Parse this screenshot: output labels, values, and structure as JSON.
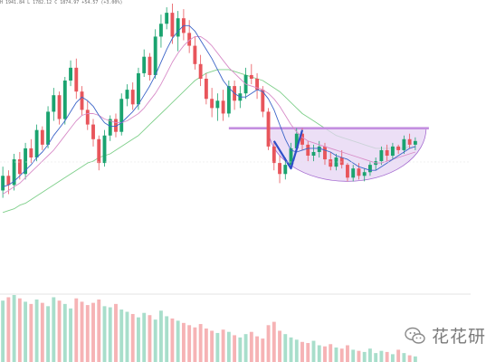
{
  "header": {
    "ohlc_text": "H 1941.84  L 1782.12  C 1874.97  +54.57 (+3.00%)",
    "change_color": "#1aa36f"
  },
  "watermark": {
    "text": "花花研",
    "icon": "wechat-chat-bubbles-icon"
  },
  "colors": {
    "up": "#1aa36f",
    "down": "#e8555b",
    "ma_fast": "#3b64c8",
    "ma_mid": "#d88cc8",
    "ma_slow": "#7ecf8a",
    "pattern_fill": "#e6d4f3",
    "pattern_stroke": "#a56cd0",
    "neckline": "#c48fe0",
    "zigzag": "#2e4fc9",
    "volume_up": "#a8decb",
    "volume_down": "#f6b3b5"
  },
  "chart_data": {
    "type": "candlestick",
    "title": "",
    "xlabel": "",
    "ylabel": "",
    "grid": false,
    "annotations": [
      "cup-and-handle pattern",
      "neckline",
      "V-shaped zig-zag"
    ],
    "price_scale": [
      0,
      100
    ],
    "candles": [
      [
        22,
        35,
        18,
        30
      ],
      [
        30,
        33,
        20,
        25
      ],
      [
        25,
        42,
        22,
        39
      ],
      [
        39,
        43,
        28,
        31
      ],
      [
        31,
        48,
        28,
        45
      ],
      [
        45,
        50,
        37,
        40
      ],
      [
        40,
        58,
        38,
        55
      ],
      [
        55,
        57,
        44,
        47
      ],
      [
        47,
        68,
        45,
        65
      ],
      [
        65,
        78,
        60,
        74
      ],
      [
        74,
        76,
        58,
        61
      ],
      [
        61,
        84,
        58,
        82
      ],
      [
        82,
        93,
        79,
        89
      ],
      [
        89,
        94,
        72,
        76
      ],
      [
        76,
        79,
        63,
        66
      ],
      [
        66,
        71,
        55,
        58
      ],
      [
        58,
        61,
        46,
        50
      ],
      [
        50,
        52,
        33,
        37
      ],
      [
        37,
        55,
        35,
        52
      ],
      [
        52,
        63,
        49,
        61
      ],
      [
        61,
        64,
        51,
        54
      ],
      [
        54,
        75,
        52,
        72
      ],
      [
        72,
        80,
        68,
        77
      ],
      [
        77,
        81,
        66,
        69
      ],
      [
        69,
        89,
        66,
        86
      ],
      [
        86,
        99,
        84,
        95
      ],
      [
        95,
        97,
        82,
        85
      ],
      [
        85,
        110,
        83,
        106
      ],
      [
        106,
        118,
        100,
        113
      ],
      [
        113,
        122,
        110,
        119
      ],
      [
        119,
        124,
        102,
        106
      ],
      [
        106,
        120,
        98,
        116
      ],
      [
        116,
        121,
        104,
        108
      ],
      [
        108,
        115,
        97,
        101
      ],
      [
        101,
        106,
        88,
        91
      ],
      [
        91,
        96,
        79,
        83
      ],
      [
        83,
        86,
        69,
        72
      ],
      [
        72,
        78,
        62,
        67
      ],
      [
        67,
        75,
        60,
        71
      ],
      [
        71,
        77,
        60,
        64
      ],
      [
        64,
        82,
        62,
        79
      ],
      [
        79,
        82,
        66,
        71
      ],
      [
        71,
        79,
        67,
        75
      ],
      [
        75,
        89,
        72,
        85
      ],
      [
        85,
        91,
        80,
        83
      ],
      [
        83,
        86,
        72,
        77
      ],
      [
        77,
        79,
        62,
        65
      ],
      [
        65,
        67,
        44,
        46
      ],
      [
        46,
        49,
        33,
        37
      ],
      [
        37,
        41,
        26,
        31
      ],
      [
        31,
        40,
        28,
        36
      ],
      [
        36,
        48,
        34,
        45
      ],
      [
        45,
        56,
        43,
        53
      ],
      [
        53,
        56,
        44,
        47
      ],
      [
        47,
        49,
        38,
        41
      ],
      [
        41,
        47,
        38,
        43
      ],
      [
        43,
        49,
        40,
        46
      ],
      [
        46,
        48,
        36,
        39
      ],
      [
        39,
        43,
        33,
        35
      ],
      [
        35,
        42,
        33,
        40
      ],
      [
        40,
        44,
        34,
        36
      ],
      [
        36,
        37,
        27,
        29
      ],
      [
        29,
        36,
        27,
        34
      ],
      [
        34,
        37,
        28,
        30
      ],
      [
        30,
        34,
        27,
        32
      ],
      [
        32,
        38,
        30,
        36
      ],
      [
        36,
        40,
        33,
        38
      ],
      [
        38,
        46,
        36,
        44
      ],
      [
        44,
        47,
        38,
        41
      ],
      [
        41,
        48,
        39,
        46
      ],
      [
        46,
        47,
        42,
        44
      ],
      [
        44,
        52,
        42,
        50
      ],
      [
        50,
        53,
        45,
        47
      ],
      [
        47,
        51,
        44,
        49
      ]
    ],
    "volume": [
      55,
      58,
      60,
      57,
      54,
      52,
      56,
      53,
      50,
      58,
      55,
      52,
      48,
      57,
      54,
      51,
      53,
      56,
      50,
      49,
      52,
      47,
      45,
      43,
      40,
      44,
      42,
      38,
      46,
      41,
      39,
      37,
      35,
      33,
      31,
      34,
      30,
      28,
      26,
      29,
      27,
      24,
      22,
      25,
      27,
      23,
      21,
      33,
      36,
      28,
      25,
      22,
      20,
      18,
      17,
      19,
      15,
      14,
      16,
      13,
      12,
      15,
      11,
      10,
      9,
      12,
      8,
      10,
      9,
      7,
      11,
      8,
      6,
      5
    ],
    "ma_fast": [
      24,
      25,
      27,
      30,
      33,
      36,
      40,
      43,
      47,
      52,
      56,
      60,
      65,
      70,
      73,
      71,
      68,
      63,
      59,
      57,
      57,
      59,
      62,
      65,
      69,
      74,
      79,
      85,
      92,
      99,
      105,
      109,
      112,
      112,
      109,
      104,
      99,
      94,
      88,
      82,
      78,
      75,
      73,
      73,
      75,
      77,
      76,
      72,
      66,
      58,
      50,
      44,
      43,
      44,
      45,
      45,
      45,
      44,
      43,
      41,
      40,
      39,
      37,
      35,
      34,
      33,
      33,
      35,
      37,
      39,
      41,
      43,
      45,
      46
    ],
    "ma_mid": [
      20,
      22,
      24,
      26,
      29,
      32,
      35,
      38,
      41,
      44,
      48,
      52,
      56,
      60,
      63,
      64,
      64,
      63,
      61,
      60,
      59,
      59,
      60,
      62,
      64,
      67,
      71,
      75,
      80,
      86,
      92,
      97,
      101,
      104,
      106,
      106,
      104,
      101,
      97,
      93,
      89,
      86,
      83,
      80,
      79,
      78,
      77,
      75,
      72,
      68,
      63,
      58,
      54,
      51,
      49,
      48,
      47,
      46,
      45,
      44,
      43,
      42,
      41,
      40,
      39,
      38,
      37,
      37,
      38,
      39,
      40,
      41,
      42,
      43
    ],
    "ma_slow": [
      10,
      11,
      12,
      14,
      15,
      17,
      19,
      21,
      23,
      25,
      27,
      29,
      31,
      33,
      35,
      37,
      38,
      40,
      41,
      42,
      44,
      46,
      48,
      50,
      52,
      55,
      58,
      61,
      64,
      67,
      70,
      73,
      76,
      79,
      82,
      84,
      86,
      87,
      88,
      88,
      88,
      87,
      86,
      85,
      84,
      83,
      82,
      80,
      78,
      76,
      73,
      70,
      67,
      64,
      62,
      60,
      58,
      56,
      54,
      52,
      51,
      50,
      49,
      48,
      47,
      46,
      45,
      45,
      45,
      45,
      45,
      45,
      46,
      46
    ],
    "zigzag_indices": [
      48,
      51,
      53
    ],
    "neckline_value": 56,
    "cup_start_index": 47,
    "cup_end_index": 73,
    "cup_bottom_value": 27
  }
}
